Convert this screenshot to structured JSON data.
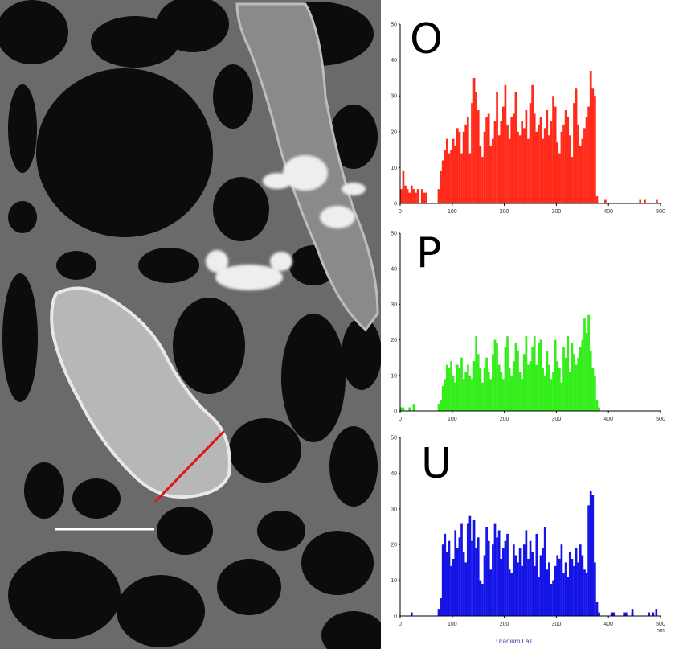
{
  "micrograph": {
    "description_icon": "electron-micrograph-image",
    "colors": {
      "background": "#1e1e1e",
      "film": "#6e6e6e",
      "particle": "#cfcfcf",
      "linescan": "#e0141e",
      "scalebar": "#ffffff"
    }
  },
  "chart_data": [
    {
      "type": "bar",
      "title": "O",
      "color": "#ff2a1a",
      "x_ticks": [
        "0",
        "100",
        "200",
        "300",
        "400",
        "500"
      ],
      "y_ticks": [
        "0",
        "10",
        "20",
        "30",
        "40",
        "50"
      ],
      "xlim": [
        0,
        500
      ],
      "ylim": [
        0,
        50
      ],
      "x_start": 0,
      "bin_width": 4,
      "values": [
        4,
        9,
        5,
        4,
        3,
        5,
        4,
        3,
        4,
        0,
        4,
        3,
        3,
        0,
        0,
        0,
        0,
        0,
        4,
        9,
        12,
        15,
        18,
        14,
        15,
        18,
        16,
        21,
        20,
        14,
        20,
        22,
        24,
        14,
        28,
        35,
        31,
        26,
        16,
        13,
        20,
        24,
        25,
        16,
        18,
        23,
        31,
        19,
        23,
        27,
        33,
        22,
        18,
        24,
        25,
        31,
        20,
        19,
        23,
        21,
        26,
        18,
        28,
        33,
        25,
        20,
        22,
        24,
        18,
        21,
        26,
        19,
        23,
        30,
        27,
        17,
        14,
        20,
        22,
        26,
        24,
        19,
        13,
        28,
        32,
        22,
        16,
        18,
        21,
        24,
        27,
        37,
        32,
        30,
        2,
        0,
        0,
        0,
        1,
        0,
        0,
        0,
        0,
        0,
        0,
        0,
        0,
        0,
        0,
        0,
        0,
        0,
        0,
        0,
        0,
        0,
        0,
        0,
        0,
        0,
        0,
        0,
        0,
        0,
        0
      ],
      "extra_points": [
        {
          "x": 459,
          "y": 1
        },
        {
          "x": 468,
          "y": 1
        },
        {
          "x": 491,
          "y": 1
        }
      ]
    },
    {
      "type": "bar",
      "title": "P",
      "color": "#33ee1a",
      "x_ticks": [
        "0",
        "100",
        "200",
        "300",
        "400",
        "500"
      ],
      "y_ticks": [
        "0",
        "10",
        "20",
        "30",
        "40",
        "50"
      ],
      "xlim": [
        0,
        500
      ],
      "ylim": [
        0,
        50
      ],
      "x_start": 0,
      "bin_width": 4,
      "values": [
        1,
        1,
        0,
        0,
        1,
        0,
        2,
        0,
        0,
        0,
        0,
        0,
        0,
        0,
        0,
        0,
        0,
        0,
        2,
        3,
        7,
        9,
        13,
        12,
        14,
        10,
        8,
        13,
        12,
        15,
        9,
        11,
        13,
        10,
        9,
        14,
        21,
        16,
        12,
        8,
        12,
        15,
        11,
        9,
        16,
        20,
        19,
        13,
        11,
        9,
        18,
        21,
        12,
        10,
        14,
        19,
        17,
        11,
        9,
        16,
        21,
        13,
        14,
        18,
        21,
        13,
        19,
        20,
        12,
        10,
        17,
        13,
        9,
        11,
        20,
        14,
        12,
        8,
        18,
        15,
        21,
        11,
        19,
        16,
        13,
        15,
        18,
        20,
        26,
        22,
        27,
        17,
        12,
        10,
        3,
        1,
        0,
        0,
        0,
        0,
        0,
        0,
        0,
        0,
        0,
        0,
        0,
        0,
        0,
        0,
        0,
        0,
        0,
        0,
        0,
        0,
        0,
        0,
        0,
        0,
        0,
        0,
        0,
        0,
        0
      ]
    },
    {
      "type": "bar",
      "title": "U",
      "color": "#1414e6",
      "x_ticks": [
        "0",
        "100",
        "200",
        "300",
        "400",
        "500"
      ],
      "x_unit": "nm",
      "y_ticks": [
        "0",
        "10",
        "20",
        "30",
        "40",
        "50"
      ],
      "xlim": [
        0,
        500
      ],
      "ylim": [
        0,
        50
      ],
      "x_start": 0,
      "bin_width": 4,
      "footer": "Uranium La1",
      "values": [
        0,
        0,
        0,
        0,
        0,
        1,
        0,
        0,
        0,
        0,
        0,
        0,
        0,
        0,
        0,
        0,
        0,
        0,
        2,
        5,
        20,
        23,
        18,
        21,
        14,
        16,
        24,
        19,
        22,
        26,
        18,
        15,
        26,
        28,
        21,
        27,
        19,
        22,
        10,
        9,
        17,
        25,
        21,
        13,
        20,
        26,
        22,
        24,
        16,
        19,
        21,
        23,
        13,
        12,
        20,
        17,
        15,
        19,
        14,
        20,
        24,
        16,
        21,
        18,
        14,
        23,
        11,
        17,
        19,
        25,
        13,
        15,
        9,
        10,
        14,
        17,
        16,
        20,
        12,
        15,
        11,
        18,
        16,
        14,
        19,
        15,
        20,
        17,
        13,
        12,
        31,
        35,
        34,
        15,
        4,
        1,
        0,
        0,
        0,
        0,
        0,
        1,
        1,
        0,
        0,
        0,
        0,
        1,
        1,
        0,
        0,
        2,
        0,
        0,
        0,
        0,
        0,
        0,
        0,
        0,
        0,
        0,
        0,
        0,
        0
      ],
      "extra_points": [
        {
          "x": 444,
          "y": 1
        },
        {
          "x": 476,
          "y": 1
        },
        {
          "x": 484,
          "y": 1
        },
        {
          "x": 490,
          "y": 2
        }
      ]
    }
  ]
}
